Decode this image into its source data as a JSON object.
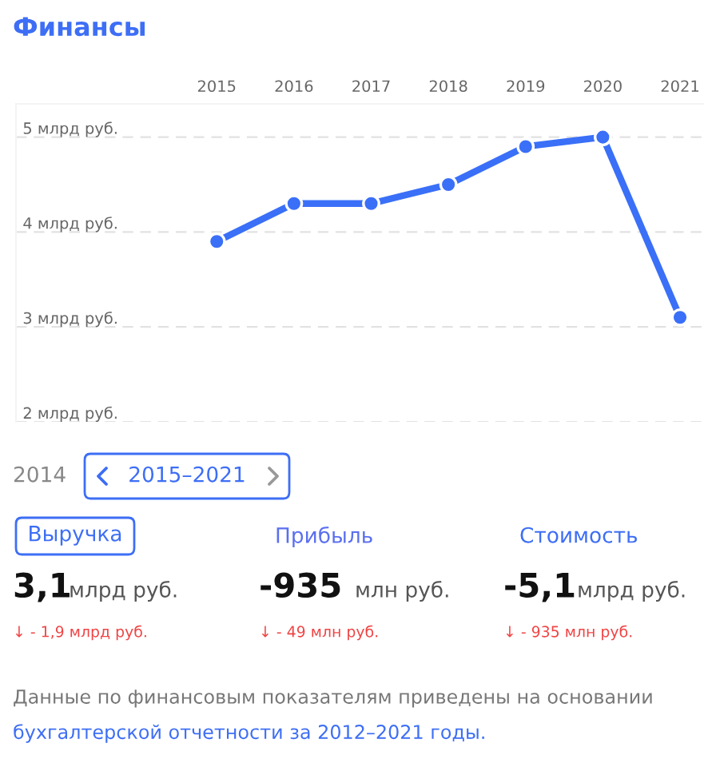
{
  "chart_data": {
    "type": "line",
    "title": "Финансы",
    "categories": [
      "2015",
      "2016",
      "2017",
      "2018",
      "2019",
      "2020",
      "2021"
    ],
    "series": [
      {
        "color": "#3a6ff7",
        "values": [
          3.9,
          4.3,
          4.3,
          4.5,
          4.9,
          5.0,
          3.1
        ]
      }
    ],
    "ylim": [
      2,
      5.35
    ],
    "yticks": [
      {
        "value": 2,
        "label": "2 млрд руб."
      },
      {
        "value": 3,
        "label": "3 млрд руб."
      },
      {
        "value": 4,
        "label": "4 млрд руб."
      },
      {
        "value": 5,
        "label": "5 млрд руб."
      }
    ],
    "grid": "y",
    "marker": "circle",
    "line_style": "solid",
    "legend": false,
    "annotations": [
      "2014",
      "2015–2021",
      "Выручка",
      "Прибыль",
      "Стоимость",
      "3,1",
      "млрд руб.",
      "-935",
      "млн руб.",
      "-5,1",
      "млрд руб.",
      "↓ - 1,9 млрд руб.",
      "↓ - 49 млн руб.",
      "↓ - 935 млн руб.",
      "Данные по финансовым показателям приведены на основании",
      "бухгалтерской отчетности за 2012–2021 годы."
    ]
  }
}
